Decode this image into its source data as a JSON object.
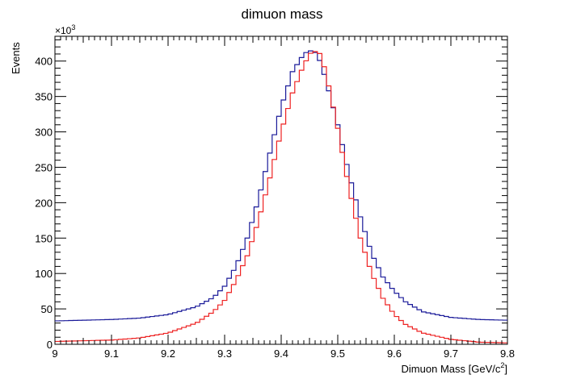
{
  "chart_data": {
    "type": "line",
    "title": "dimuon mass",
    "xlabel": "Dimuon Mass [GeV/c",
    "xlabel_sup": "2",
    "xlabel_close": "]",
    "ylabel": "Events",
    "y_multiplier_base": "×10",
    "y_multiplier_exp": "3",
    "xlim": [
      9.0,
      9.8
    ],
    "ylim": [
      0,
      435
    ],
    "y_scale_note": "values in thousands of events",
    "grid": false,
    "legend": "none",
    "xticks": [
      "9",
      "9.1",
      "9.2",
      "9.3",
      "9.4",
      "9.5",
      "9.6",
      "9.7",
      "9.8"
    ],
    "yticks": [
      "0",
      "50",
      "100",
      "150",
      "200",
      "250",
      "300",
      "350",
      "400"
    ],
    "series": [
      {
        "color": "#1a1a99",
        "anchors": [
          [
            9.0,
            33
          ],
          [
            9.05,
            34
          ],
          [
            9.1,
            35
          ],
          [
            9.15,
            37
          ],
          [
            9.2,
            42
          ],
          [
            9.25,
            53
          ],
          [
            9.28,
            66
          ],
          [
            9.3,
            82
          ],
          [
            9.32,
            110
          ],
          [
            9.34,
            150
          ],
          [
            9.36,
            205
          ],
          [
            9.38,
            270
          ],
          [
            9.4,
            335
          ],
          [
            9.42,
            385
          ],
          [
            9.44,
            410
          ],
          [
            9.45,
            415
          ],
          [
            9.46,
            412
          ],
          [
            9.47,
            398
          ],
          [
            9.48,
            370
          ],
          [
            9.5,
            310
          ],
          [
            9.52,
            240
          ],
          [
            9.54,
            180
          ],
          [
            9.56,
            128
          ],
          [
            9.58,
            95
          ],
          [
            9.6,
            75
          ],
          [
            9.62,
            60
          ],
          [
            9.65,
            46
          ],
          [
            9.7,
            38
          ],
          [
            9.75,
            35
          ],
          [
            9.8,
            34
          ]
        ]
      },
      {
        "color": "#ee2222",
        "anchors": [
          [
            9.0,
            4
          ],
          [
            9.05,
            5
          ],
          [
            9.1,
            6
          ],
          [
            9.15,
            9
          ],
          [
            9.2,
            16
          ],
          [
            9.25,
            30
          ],
          [
            9.28,
            46
          ],
          [
            9.3,
            62
          ],
          [
            9.32,
            90
          ],
          [
            9.34,
            125
          ],
          [
            9.36,
            175
          ],
          [
            9.38,
            235
          ],
          [
            9.4,
            300
          ],
          [
            9.42,
            355
          ],
          [
            9.44,
            395
          ],
          [
            9.455,
            415
          ],
          [
            9.47,
            410
          ],
          [
            9.48,
            380
          ],
          [
            9.5,
            305
          ],
          [
            9.52,
            220
          ],
          [
            9.54,
            150
          ],
          [
            9.56,
            100
          ],
          [
            9.58,
            65
          ],
          [
            9.6,
            42
          ],
          [
            9.62,
            28
          ],
          [
            9.65,
            16
          ],
          [
            9.7,
            7
          ],
          [
            9.75,
            3
          ],
          [
            9.8,
            2
          ]
        ]
      }
    ]
  }
}
